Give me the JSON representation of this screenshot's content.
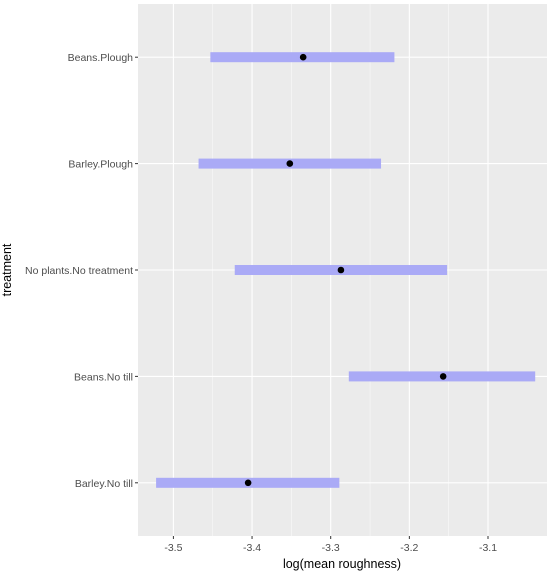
{
  "chart_data": {
    "type": "forest",
    "xlabel": "log(mean roughness)",
    "ylabel": "treatment",
    "xlim": [
      -3.545,
      -3.025
    ],
    "x_ticks": [
      -3.5,
      -3.4,
      -3.3,
      -3.2,
      -3.1
    ],
    "x_tick_labels": [
      "-3.5",
      "-3.4",
      "-3.3",
      "-3.2",
      "-3.1"
    ],
    "grid": true,
    "categories": [
      "Beans.Plough",
      "Barley.Plough",
      "No plants.No treatment",
      "Beans.No till",
      "Barley.No till"
    ],
    "estimates": [
      -3.335,
      -3.352,
      -3.287,
      -3.157,
      -3.405
    ],
    "lower": [
      -3.453,
      -3.468,
      -3.422,
      -3.277,
      -3.522
    ],
    "upper": [
      -3.219,
      -3.236,
      -3.152,
      -3.04,
      -3.289
    ],
    "colors": {
      "panel_background": "#ebebeb",
      "grid": "#ffffff",
      "interval": "#aaaaf6",
      "point": "#000000"
    }
  }
}
